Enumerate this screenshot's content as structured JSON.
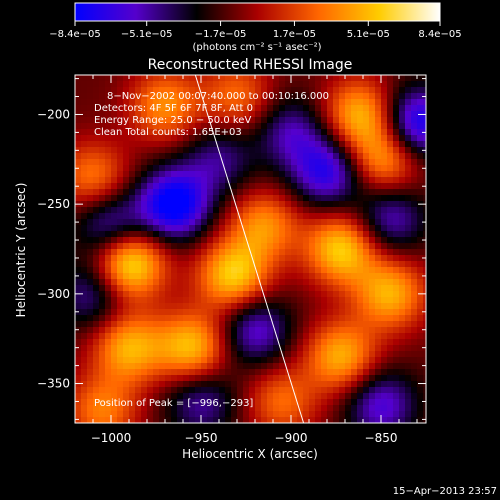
{
  "chart_data": {
    "type": "heatmap",
    "title": "Reconstructed RHESSI Image",
    "xlabel": "Heliocentric X (arcsec)",
    "ylabel": "Heliocentric Y (arcsec)",
    "xlim": [
      -1020,
      -825
    ],
    "ylim": [
      -372,
      -178
    ],
    "xticks": [
      -1000,
      -950,
      -900,
      -850
    ],
    "xtick_labels": [
      "−1000",
      "−950",
      "−900",
      "−850"
    ],
    "yticks": [
      -200,
      -250,
      -300,
      -350
    ],
    "ytick_labels": [
      "−200",
      "−250",
      "−300",
      "−350"
    ],
    "colorbar": {
      "ticks": [
        -8.4e-05,
        -5.1e-05,
        -1.7e-05,
        1.7e-05,
        5.1e-05,
        8.4e-05
      ],
      "tick_labels": [
        "−8.4e−05",
        "−5.1e−05",
        "−1.7e−05",
        "1.7e−05",
        "5.1e−05",
        "8.4e−05"
      ],
      "units_label": "(photons cm⁻² s⁻¹ asec⁻²)",
      "colors": [
        "#0000ff",
        "#5500cc",
        "#000000",
        "#aa0000",
        "#ff6600",
        "#ffcc00",
        "#ffffff"
      ]
    },
    "annotations": [
      "8−Nov−2002 00:07:40.000 to 00:10:16.000",
      "Detectors: 4F 5F 6F 7F 8F, Att 0",
      "Energy Range: 25.0 − 50.0 keV",
      "Clean     Total counts: 1.65E+03"
    ],
    "peak_label": "Position of Peak = [−996,−293]",
    "peak": [
      -996,
      -293
    ],
    "limb_line": [
      [
        -955,
        -172
      ],
      [
        -893,
        -372
      ]
    ],
    "blobs": [
      {
        "x": -990,
        "y": -283,
        "v": 8.4e-05
      },
      {
        "x": -990,
        "y": -330,
        "v": 6e-05
      },
      {
        "x": -955,
        "y": -330,
        "v": 6.5e-05
      },
      {
        "x": -932,
        "y": -290,
        "v": 7e-05
      },
      {
        "x": -915,
        "y": -262,
        "v": 5e-05
      },
      {
        "x": -872,
        "y": -275,
        "v": 7e-05
      },
      {
        "x": -845,
        "y": -300,
        "v": 6e-05
      },
      {
        "x": -872,
        "y": -335,
        "v": 6e-05
      },
      {
        "x": -862,
        "y": -200,
        "v": 6e-05
      },
      {
        "x": -848,
        "y": -225,
        "v": 5.5e-05
      },
      {
        "x": -970,
        "y": -195,
        "v": 5e-05
      },
      {
        "x": -930,
        "y": -190,
        "v": 4e-05
      },
      {
        "x": -1010,
        "y": -235,
        "v": 4.5e-05
      },
      {
        "x": -1005,
        "y": -365,
        "v": 4.5e-05
      },
      {
        "x": -905,
        "y": -360,
        "v": 4e-05
      },
      {
        "x": -965,
        "y": -250,
        "v": -8e-05
      },
      {
        "x": -1000,
        "y": -262,
        "v": -5e-05
      },
      {
        "x": -880,
        "y": -232,
        "v": -6e-05
      },
      {
        "x": -830,
        "y": -205,
        "v": -7e-05
      },
      {
        "x": -920,
        "y": -320,
        "v": -5e-05
      },
      {
        "x": -850,
        "y": -362,
        "v": -5e-05
      },
      {
        "x": -950,
        "y": -360,
        "v": -4e-05
      },
      {
        "x": -1010,
        "y": -300,
        "v": -4e-05
      },
      {
        "x": -900,
        "y": -210,
        "v": -4e-05
      },
      {
        "x": -845,
        "y": -258,
        "v": -4.5e-05
      },
      {
        "x": -940,
        "y": -225,
        "v": -3.5e-05
      }
    ]
  },
  "footer": {
    "timestamp": "15−Apr−2013 23:57"
  }
}
